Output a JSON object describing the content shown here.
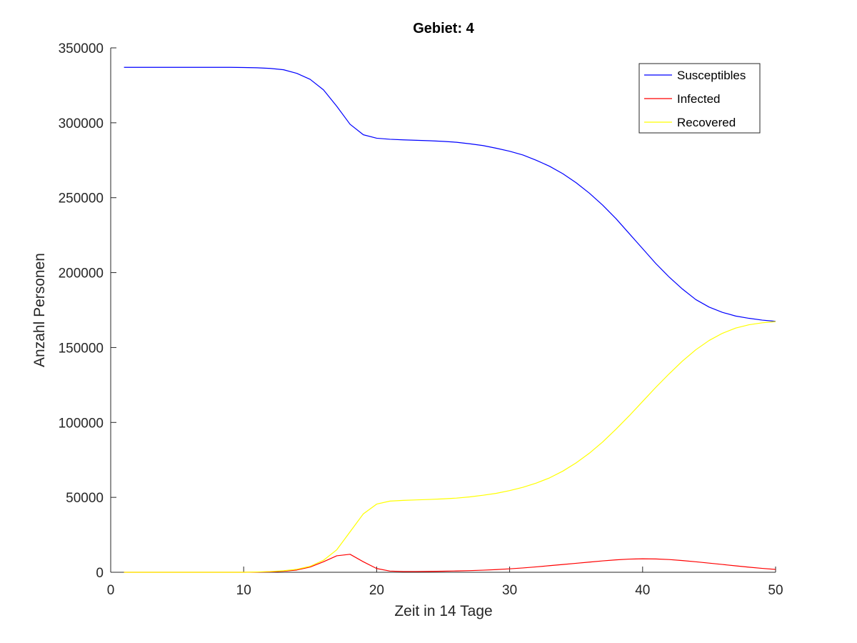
{
  "chart_data": {
    "type": "line",
    "title": "Gebiet: 4",
    "xlabel": "Zeit in 14 Tage",
    "ylabel": "Anzahl Personen",
    "xlim": [
      0,
      50
    ],
    "ylim": [
      0,
      350000
    ],
    "xticks": [
      0,
      10,
      20,
      30,
      40,
      50
    ],
    "yticks": [
      0,
      50000,
      100000,
      150000,
      200000,
      250000,
      300000,
      350000
    ],
    "xtick_labels": [
      "0",
      "10",
      "20",
      "30",
      "40",
      "50"
    ],
    "ytick_labels": [
      "0",
      "50000",
      "100000",
      "150000",
      "200000",
      "250000",
      "300000",
      "350000"
    ],
    "grid": false,
    "legend_position": "top-right",
    "x": [
      1,
      2,
      3,
      4,
      5,
      6,
      7,
      8,
      9,
      10,
      11,
      12,
      13,
      14,
      15,
      16,
      17,
      18,
      19,
      20,
      21,
      22,
      23,
      24,
      25,
      26,
      27,
      28,
      29,
      30,
      31,
      32,
      33,
      34,
      35,
      36,
      37,
      38,
      39,
      40,
      41,
      42,
      43,
      44,
      45,
      46,
      47,
      48,
      49,
      50
    ],
    "series": [
      {
        "name": "Susceptibles",
        "color": "#0000ff",
        "values": [
          337000,
          337000,
          337000,
          337000,
          337000,
          337000,
          337000,
          337000,
          337000,
          336900,
          336700,
          336300,
          335400,
          333000,
          329000,
          322000,
          311000,
          299000,
          292000,
          289700,
          289000,
          288600,
          288300,
          288000,
          287600,
          287000,
          286000,
          284800,
          283000,
          281000,
          278500,
          275000,
          271000,
          266000,
          260000,
          253000,
          245000,
          236000,
          226000,
          216000,
          206000,
          197000,
          189000,
          182000,
          177000,
          173500,
          171000,
          169500,
          168300,
          167500
        ]
      },
      {
        "name": "Infected",
        "color": "#ff0000",
        "values": [
          0,
          0,
          0,
          0,
          0,
          0,
          0,
          0,
          0,
          0,
          100,
          300,
          700,
          1500,
          3500,
          7000,
          11000,
          12000,
          7000,
          2500,
          800,
          500,
          500,
          600,
          700,
          900,
          1100,
          1400,
          1800,
          2300,
          2900,
          3600,
          4400,
          5200,
          6000,
          6800,
          7600,
          8300,
          8800,
          9000,
          8900,
          8500,
          7800,
          7000,
          6100,
          5200,
          4300,
          3400,
          2600,
          1900
        ]
      },
      {
        "name": "Recovered",
        "color": "#ffff00",
        "values": [
          0,
          0,
          0,
          0,
          0,
          0,
          0,
          0,
          0,
          0,
          200,
          500,
          1000,
          2000,
          4000,
          8000,
          15000,
          27000,
          39000,
          45500,
          47500,
          48000,
          48300,
          48600,
          49000,
          49500,
          50300,
          51400,
          52700,
          54500,
          56700,
          59500,
          63000,
          67500,
          73000,
          79500,
          87000,
          95500,
          104500,
          114000,
          123500,
          132500,
          141000,
          148500,
          154700,
          159500,
          163000,
          165200,
          166500,
          167300
        ]
      }
    ]
  }
}
